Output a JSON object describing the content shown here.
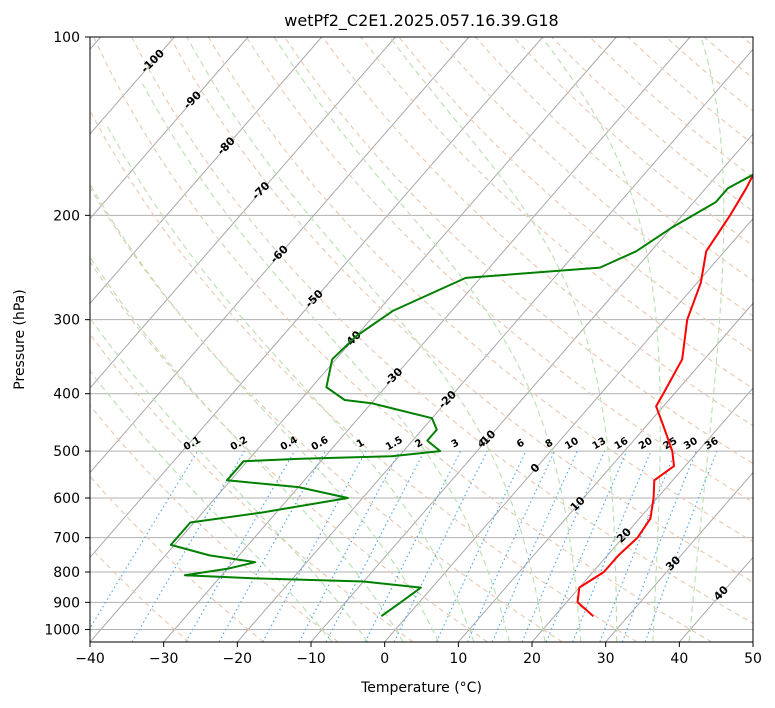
{
  "chart_data": {
    "type": "line",
    "title": "wetPf2_C2E1.2025.057.16.39.G18",
    "xlabel": "Temperature (°C)",
    "ylabel": "Pressure (hPa)",
    "xlim": [
      -40,
      50
    ],
    "ylim": [
      1050,
      100
    ],
    "y_scale": "log",
    "grid": true,
    "x_ticks": [
      -40,
      -30,
      -20,
      -10,
      0,
      10,
      20,
      30,
      40,
      50
    ],
    "x_tick_labels": [
      "−40",
      "−30",
      "−20",
      "−10",
      "0",
      "10",
      "20",
      "30",
      "40",
      "50"
    ],
    "y_ticks": [
      100,
      200,
      300,
      400,
      500,
      600,
      700,
      800,
      900,
      1000
    ],
    "y_tick_labels": [
      "100",
      "200",
      "300",
      "400",
      "500",
      "600",
      "700",
      "800",
      "900",
      "1000"
    ],
    "series": [
      {
        "role": "temperature",
        "color": "#ff0000",
        "points": [
          [
            25.3,
            950
          ],
          [
            21.5,
            900
          ],
          [
            20.0,
            850
          ],
          [
            21.5,
            800
          ],
          [
            21.5,
            750
          ],
          [
            22.0,
            700
          ],
          [
            21.5,
            650
          ],
          [
            19.5,
            600
          ],
          [
            17.5,
            560
          ],
          [
            18.5,
            530
          ],
          [
            16.5,
            500
          ],
          [
            12.0,
            450
          ],
          [
            9.0,
            420
          ],
          [
            8.5,
            400
          ],
          [
            7.0,
            350
          ],
          [
            3.0,
            300
          ],
          [
            0.5,
            260
          ],
          [
            -2.5,
            230
          ],
          [
            -3.5,
            200
          ],
          [
            -4.5,
            180
          ],
          [
            -6.0,
            160
          ],
          [
            -7.5,
            145
          ],
          [
            -10.0,
            130
          ],
          [
            -10.0,
            120
          ],
          [
            -9.0,
            110
          ],
          [
            -7.0,
            100
          ]
        ]
      },
      {
        "role": "dewpoint",
        "color": "#008000",
        "points": [
          [
            -3.5,
            950
          ],
          [
            -2.5,
            900
          ],
          [
            -1.5,
            850
          ],
          [
            -10.0,
            830
          ],
          [
            -25.0,
            820
          ],
          [
            -35.0,
            810
          ],
          [
            -30.0,
            790
          ],
          [
            -27.0,
            770
          ],
          [
            -34.0,
            750
          ],
          [
            -40.5,
            720
          ],
          [
            -40.5,
            660
          ],
          [
            -32.0,
            635
          ],
          [
            -22.0,
            600
          ],
          [
            -30.0,
            575
          ],
          [
            -40.5,
            560
          ],
          [
            -40.5,
            520
          ],
          [
            -33.0,
            515
          ],
          [
            -21.0,
            510
          ],
          [
            -15.0,
            500
          ],
          [
            -18.0,
            480
          ],
          [
            -18.0,
            460
          ],
          [
            -20.0,
            440
          ],
          [
            -30.0,
            415
          ],
          [
            -34.0,
            410
          ],
          [
            -38.0,
            390
          ],
          [
            -40.5,
            350
          ],
          [
            -40.0,
            320
          ],
          [
            -38.0,
            290
          ],
          [
            -32.0,
            255
          ],
          [
            -15.0,
            245
          ],
          [
            -12.0,
            230
          ],
          [
            -10.0,
            210
          ],
          [
            -7.0,
            190
          ],
          [
            -7.0,
            180
          ],
          [
            -4.0,
            165
          ],
          [
            0.0,
            150
          ],
          [
            0.0,
            140
          ],
          [
            -2.0,
            125
          ],
          [
            -1.0,
            115
          ],
          [
            -3.0,
            105
          ],
          [
            -4.0,
            100
          ]
        ]
      }
    ],
    "dry_adiabats": {
      "color": "#e8c8b0",
      "style": "dashed",
      "theta_C": [
        -30,
        -20,
        -10,
        0,
        10,
        20,
        30,
        40,
        50,
        60,
        70,
        80,
        90,
        100,
        110,
        120,
        130,
        140,
        150,
        160,
        170,
        180,
        190,
        200,
        210,
        220,
        230
      ]
    },
    "moist_adiabats": {
      "color": "#b9dfb0",
      "style": "dashed",
      "start_temps_C": [
        -10,
        -5,
        0,
        5,
        10,
        15,
        20,
        25,
        30,
        35,
        40
      ]
    },
    "mixing_ratio_lines": {
      "color": "#4aa3ef",
      "style": "dotted",
      "values": [
        0.1,
        0.2,
        0.4,
        0.6,
        1,
        1.5,
        2,
        3,
        4,
        6,
        8,
        10,
        13,
        16,
        20,
        25,
        30,
        36
      ],
      "labels": [
        "0.1",
        "0.2",
        "0.4",
        "0.6",
        "1",
        "1.5",
        "2",
        "3",
        "4",
        "6",
        "8",
        "10",
        "13",
        "16",
        "20",
        "25",
        "30",
        "36"
      ],
      "label_color": "#1e88e5"
    },
    "isotherm_labels_cold": {
      "color": "#1f6fb2",
      "items": [
        {
          "text": "-100",
          "t": -100,
          "p": 110
        },
        {
          "text": "-90",
          "t": -90,
          "p": 128
        },
        {
          "text": "-80",
          "t": -80,
          "p": 153
        },
        {
          "text": "-70",
          "t": -70,
          "p": 182
        },
        {
          "text": "-60",
          "t": -60,
          "p": 233
        },
        {
          "text": "-50",
          "t": -50,
          "p": 277
        },
        {
          "text": "-40",
          "t": -40,
          "p": 325
        },
        {
          "text": "-30",
          "t": -30,
          "p": 375
        },
        {
          "text": "-20",
          "t": -20,
          "p": 410
        },
        {
          "text": "-10",
          "t": -10,
          "p": 478
        }
      ]
    },
    "isotherm_labels_warm": {
      "color": "#d62728",
      "items": [
        {
          "text": "0",
          "t": 0,
          "p": 535,
          "color": "#707070"
        },
        {
          "text": "10",
          "t": 10,
          "p": 615
        },
        {
          "text": "20",
          "t": 20,
          "p": 695
        },
        {
          "text": "30",
          "t": 30,
          "p": 775
        },
        {
          "text": "40",
          "t": 40,
          "p": 870
        }
      ]
    }
  }
}
